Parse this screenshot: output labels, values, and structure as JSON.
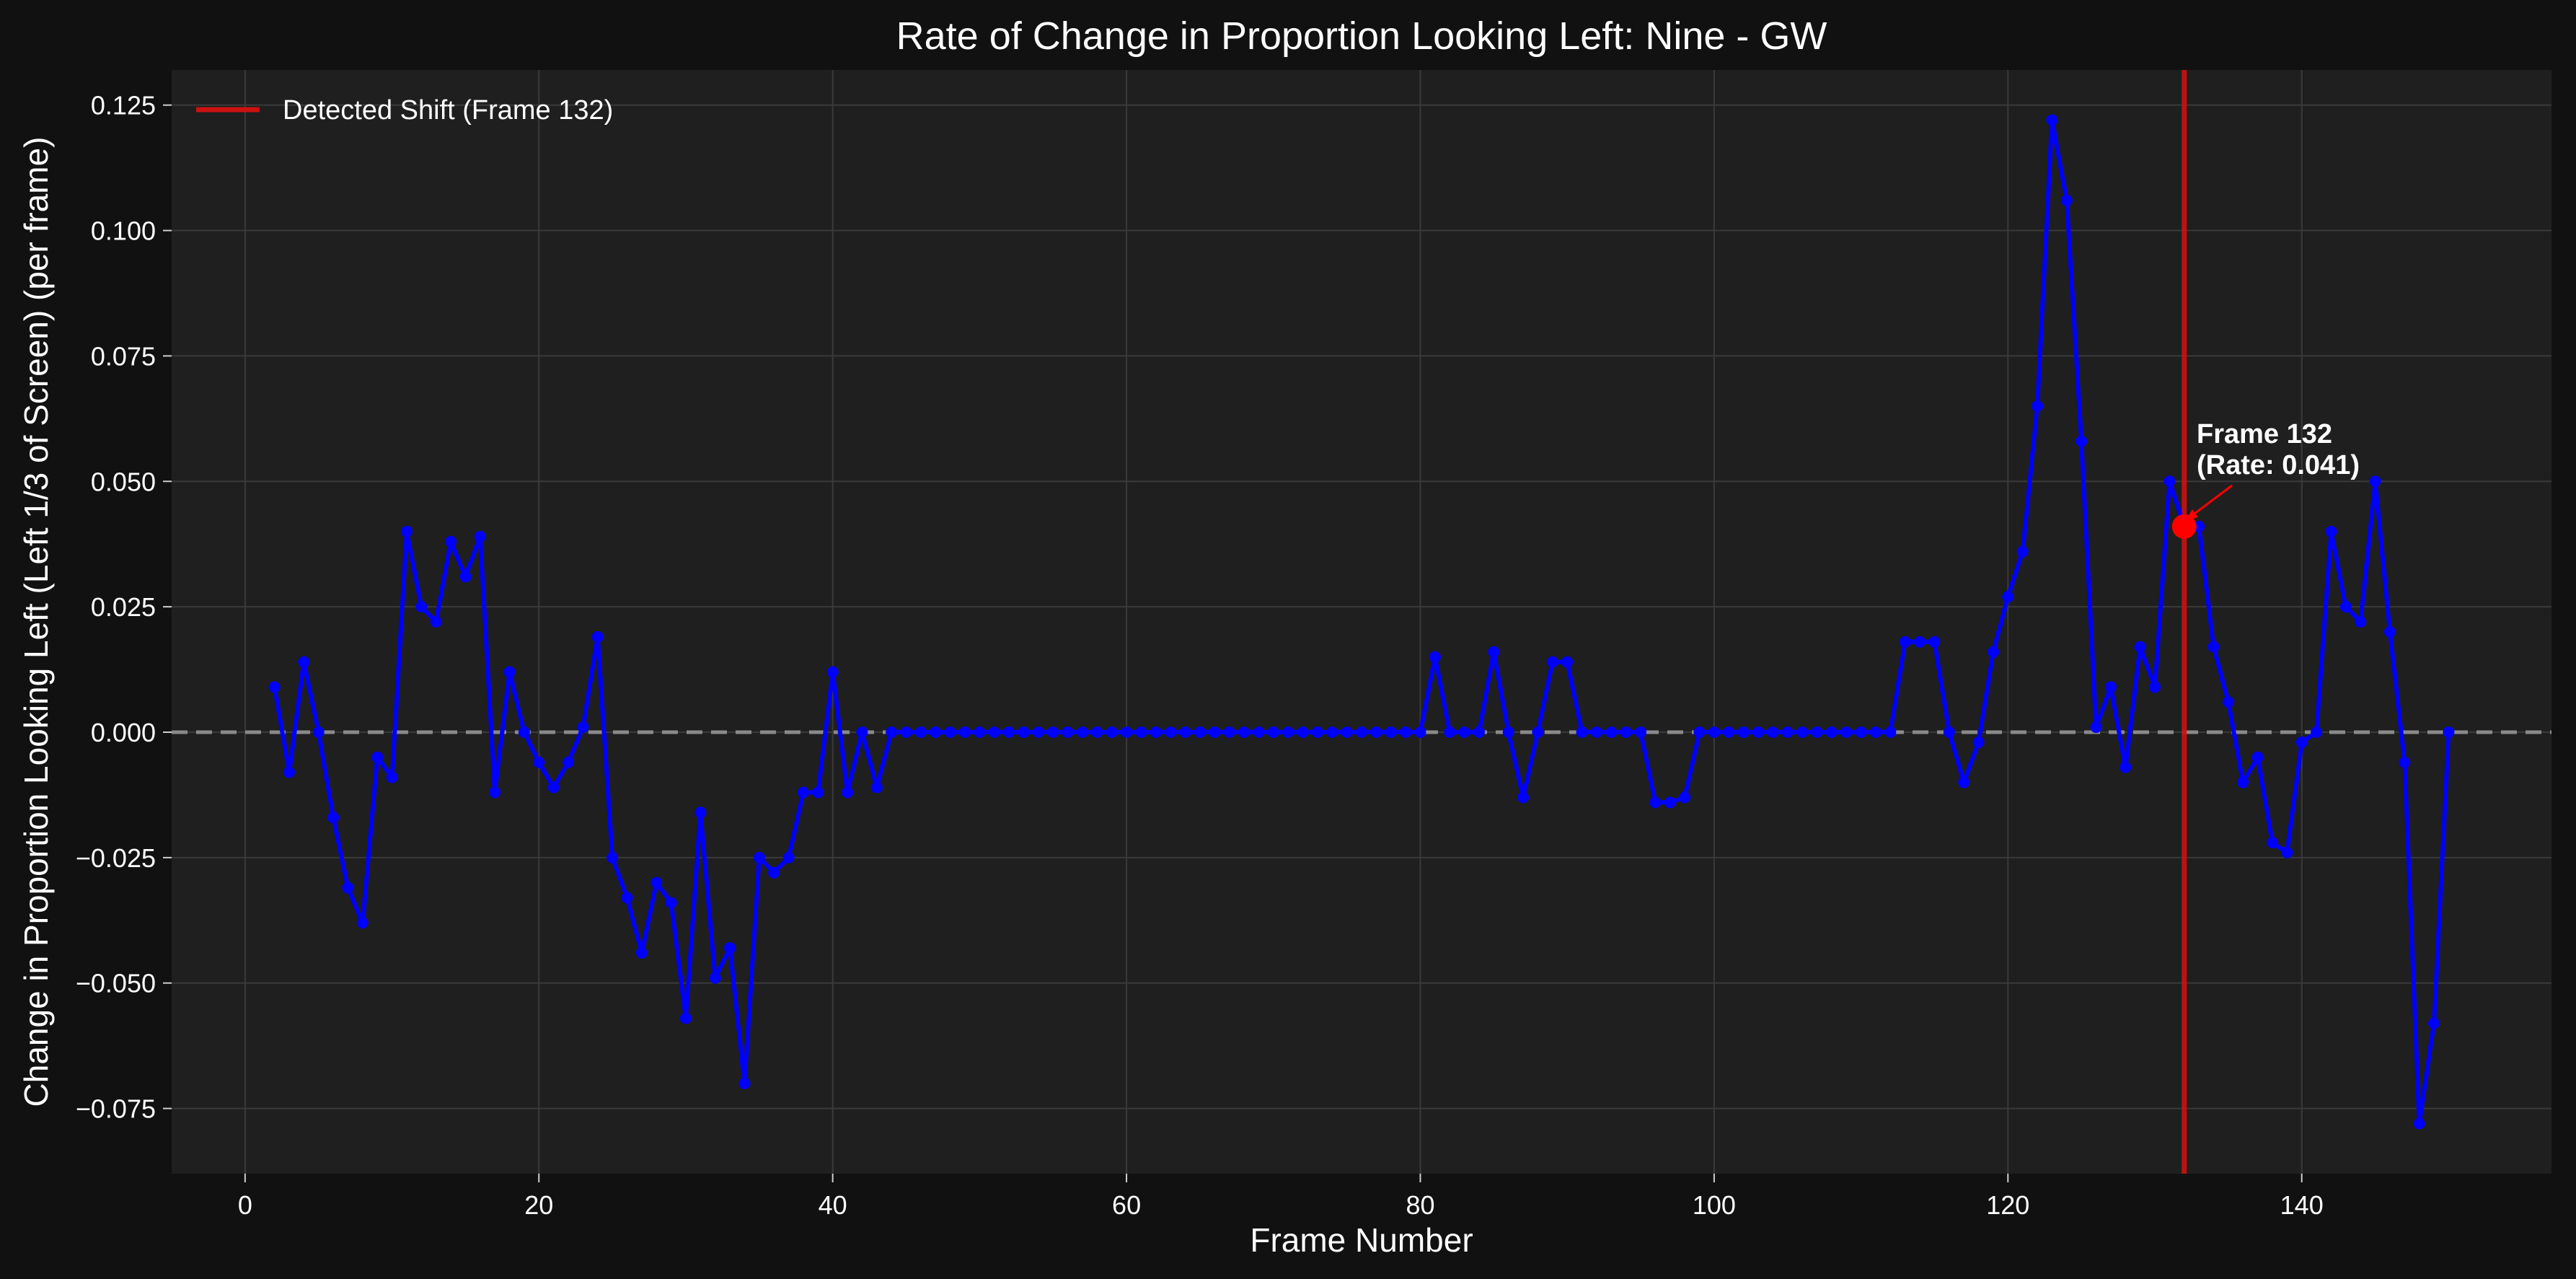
{
  "chart_data": {
    "type": "line",
    "title": "Rate of Change in Proportion Looking Left: Nine - GW",
    "xlabel": "Frame Number",
    "ylabel": "Change in Proportion Looking Left (Left 1/3 of Screen) (per frame)",
    "xlim": [
      -5,
      157
    ],
    "ylim": [
      -0.088,
      0.132
    ],
    "xticks": [
      0,
      20,
      40,
      60,
      80,
      100,
      120,
      140
    ],
    "yticks": [
      -0.075,
      -0.05,
      -0.025,
      0.0,
      0.025,
      0.05,
      0.075,
      0.1,
      0.125
    ],
    "xtick_labels": [
      "0",
      "20",
      "40",
      "60",
      "80",
      "100",
      "120",
      "140"
    ],
    "ytick_labels": [
      "−0.075",
      "−0.050",
      "−0.025",
      "0.000",
      "0.025",
      "0.050",
      "0.075",
      "0.100",
      "0.125"
    ],
    "grid": true,
    "legend_position": "top-left",
    "zero_line": 0,
    "series": [
      {
        "name": "",
        "color": "#0000ff",
        "x": [
          2,
          3,
          4,
          5,
          6,
          7,
          8,
          9,
          10,
          11,
          12,
          13,
          14,
          15,
          16,
          17,
          18,
          19,
          20,
          21,
          22,
          23,
          24,
          25,
          26,
          27,
          28,
          29,
          30,
          31,
          32,
          33,
          34,
          35,
          36,
          37,
          38,
          39,
          40,
          41,
          42,
          43,
          44,
          45,
          46,
          47,
          48,
          49,
          50,
          51,
          52,
          53,
          54,
          55,
          56,
          57,
          58,
          59,
          60,
          61,
          62,
          63,
          64,
          65,
          66,
          67,
          68,
          69,
          70,
          71,
          72,
          73,
          74,
          75,
          76,
          77,
          78,
          79,
          80,
          81,
          82,
          83,
          84,
          85,
          86,
          87,
          88,
          89,
          90,
          91,
          92,
          93,
          94,
          95,
          96,
          97,
          98,
          99,
          100,
          101,
          102,
          103,
          104,
          105,
          106,
          107,
          108,
          109,
          110,
          111,
          112,
          113,
          114,
          115,
          116,
          117,
          118,
          119,
          120,
          121,
          122,
          123,
          124,
          125,
          126,
          127,
          128,
          129,
          130,
          131,
          132,
          133,
          134,
          135,
          136,
          137,
          138,
          139,
          140,
          141,
          142,
          143,
          144,
          145,
          146,
          147,
          148,
          149,
          150
        ],
        "y": [
          0.009,
          -0.008,
          0.014,
          0.0,
          -0.017,
          -0.031,
          -0.038,
          -0.005,
          -0.009,
          0.04,
          0.025,
          0.022,
          0.038,
          0.031,
          0.039,
          -0.012,
          0.012,
          0.0,
          -0.006,
          -0.011,
          -0.006,
          0.001,
          0.019,
          -0.025,
          -0.033,
          -0.044,
          -0.03,
          -0.034,
          -0.057,
          -0.016,
          -0.049,
          -0.043,
          -0.07,
          -0.025,
          -0.028,
          -0.025,
          -0.012,
          -0.012,
          0.012,
          -0.012,
          0.0,
          -0.011,
          0.0,
          0.0,
          0.0,
          0.0,
          0.0,
          0.0,
          0.0,
          0.0,
          0.0,
          0.0,
          0.0,
          0.0,
          0.0,
          0.0,
          0.0,
          0.0,
          0.0,
          0.0,
          0.0,
          0.0,
          0.0,
          0.0,
          0.0,
          0.0,
          0.0,
          0.0,
          0.0,
          0.0,
          0.0,
          0.0,
          0.0,
          0.0,
          0.0,
          0.0,
          0.0,
          0.0,
          0.0,
          0.015,
          0.0,
          0.0,
          0.0,
          0.016,
          0.0,
          -0.013,
          0.0,
          0.014,
          0.014,
          0.0,
          0.0,
          0.0,
          0.0,
          0.0,
          -0.014,
          -0.014,
          -0.013,
          0.0,
          0.0,
          0.0,
          0.0,
          0.0,
          0.0,
          0.0,
          0.0,
          0.0,
          0.0,
          0.0,
          0.0,
          0.0,
          0.0,
          0.018,
          0.018,
          0.018,
          0.0,
          -0.01,
          -0.002,
          0.016,
          0.027,
          0.036,
          0.065,
          0.122,
          0.106,
          0.058,
          0.001,
          0.009,
          -0.007,
          0.017,
          0.009,
          0.05,
          0.041,
          0.041,
          0.017,
          0.006,
          -0.01,
          -0.005,
          -0.022,
          -0.024,
          -0.002,
          0.0,
          0.04,
          0.025,
          0.022,
          0.05,
          0.02,
          -0.006,
          -0.078,
          -0.058,
          0.0
        ]
      }
    ],
    "shift_line": {
      "x": 132,
      "color": "#cc1111",
      "label": "Detected Shift (Frame 132)"
    },
    "highlight_point": {
      "x": 132,
      "y": 0.041,
      "color": "#ff0000"
    },
    "annotation": {
      "line1": "Frame 132",
      "line2": "(Rate: 0.041)"
    }
  }
}
